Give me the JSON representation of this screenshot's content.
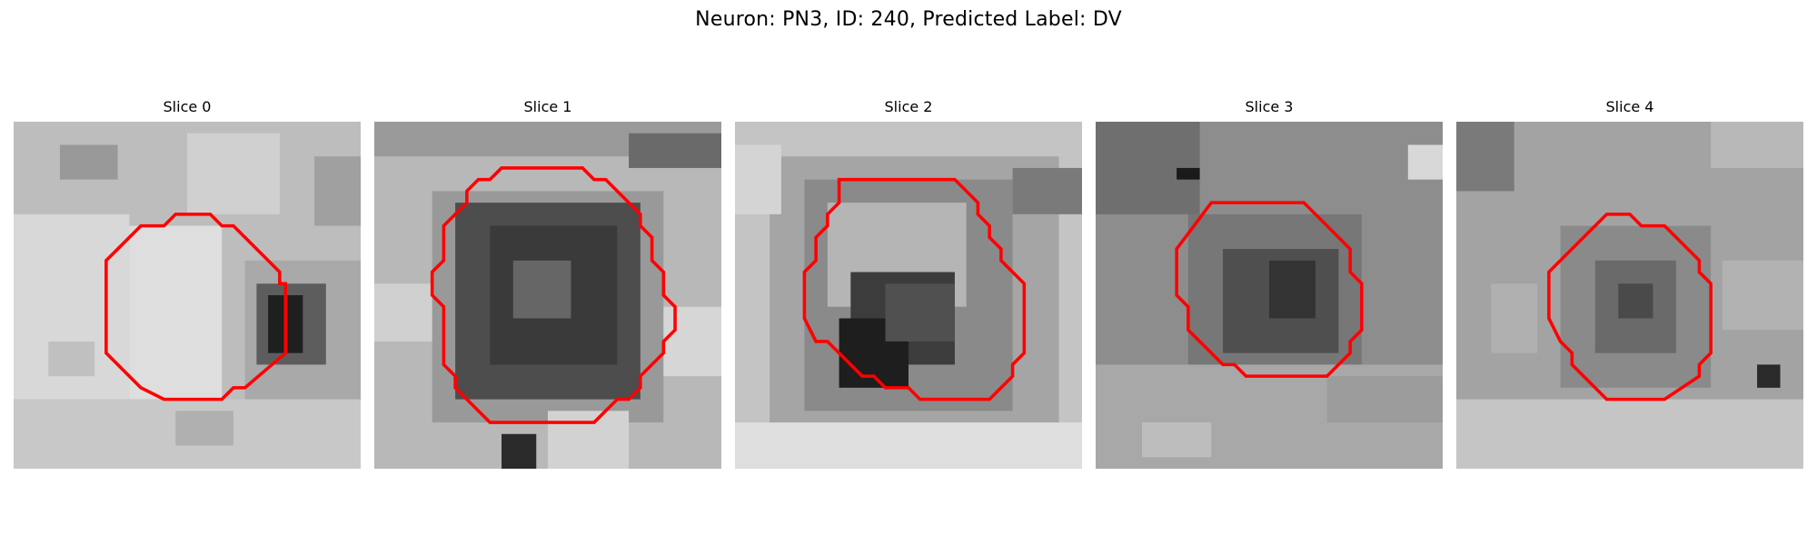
{
  "figure": {
    "title": "Neuron: PN3, ID: 240, Predicted Label: DV"
  },
  "contour_color": "#ff0000",
  "panels": [
    {
      "title": "Slice 0"
    },
    {
      "title": "Slice 1"
    },
    {
      "title": "Slice 2"
    },
    {
      "title": "Slice 3"
    },
    {
      "title": "Slice 4"
    }
  ]
}
